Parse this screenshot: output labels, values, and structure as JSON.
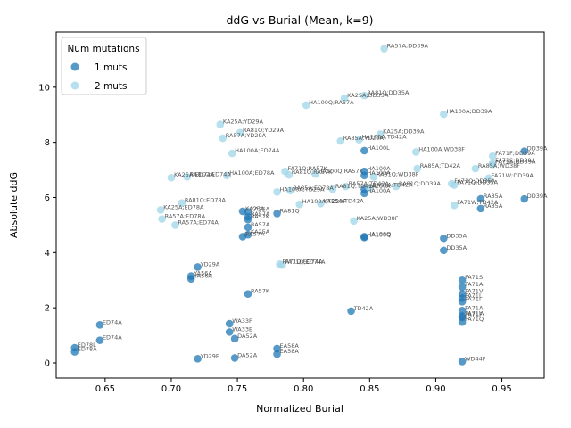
{
  "chart_data": {
    "type": "scatter",
    "title": "ddG vs Burial (Mean, k=9)",
    "xlabel": "Normalized Burial",
    "ylabel": "Absolute ddG",
    "xlim": [
      0.613,
      0.982
    ],
    "ylim": [
      -0.55,
      12.0
    ],
    "xticks": [
      0.65,
      0.7,
      0.75,
      0.8,
      0.85,
      0.9,
      0.95
    ],
    "xtick_labels": [
      "0.65",
      "0.70",
      "0.75",
      "0.80",
      "0.85",
      "0.90",
      "0.95"
    ],
    "yticks": [
      0,
      2,
      4,
      6,
      8,
      10
    ],
    "ytick_labels": [
      "0",
      "2",
      "4",
      "6",
      "8",
      "10"
    ],
    "grid": false,
    "legend": {
      "title": "Num mutations",
      "placement": "top-left",
      "entries": [
        {
          "label": "1 muts",
          "color": "#1f77b4"
        },
        {
          "label": "2 muts",
          "color": "#9fd6e8"
        }
      ]
    },
    "series": [
      {
        "name": "1 muts",
        "color": "#1f77b4",
        "points": [
          {
            "x": 0.627,
            "y": 0.55,
            "label": "ED78L"
          },
          {
            "x": 0.627,
            "y": 0.4,
            "label": "ED78A"
          },
          {
            "x": 0.646,
            "y": 1.38,
            "label": "ED74A"
          },
          {
            "x": 0.646,
            "y": 0.82,
            "label": "ED74A"
          },
          {
            "x": 0.715,
            "y": 3.15,
            "label": "YA56A"
          },
          {
            "x": 0.715,
            "y": 3.05,
            "label": "YA56A"
          },
          {
            "x": 0.72,
            "y": 3.48,
            "label": "YD29A"
          },
          {
            "x": 0.72,
            "y": 0.15,
            "label": "YD29F"
          },
          {
            "x": 0.744,
            "y": 1.42,
            "label": "WA33F"
          },
          {
            "x": 0.744,
            "y": 1.12,
            "label": "WA33E"
          },
          {
            "x": 0.748,
            "y": 0.88,
            "label": "DA52A"
          },
          {
            "x": 0.748,
            "y": 0.18,
            "label": "DA52A"
          },
          {
            "x": 0.754,
            "y": 5.5,
            "label": "KA25A"
          },
          {
            "x": 0.754,
            "y": 4.58,
            "label": "RA57A"
          },
          {
            "x": 0.758,
            "y": 5.48,
            "label": "KA25A"
          },
          {
            "x": 0.758,
            "y": 5.3,
            "label": "RA57A"
          },
          {
            "x": 0.758,
            "y": 5.2,
            "label": "RA57K"
          },
          {
            "x": 0.758,
            "y": 4.92,
            "label": "RA57A"
          },
          {
            "x": 0.758,
            "y": 4.65,
            "label": "KA25A"
          },
          {
            "x": 0.758,
            "y": 2.5,
            "label": "RA57K"
          },
          {
            "x": 0.78,
            "y": 5.42,
            "label": "RA81Q"
          },
          {
            "x": 0.78,
            "y": 0.52,
            "label": "EA58A"
          },
          {
            "x": 0.78,
            "y": 0.32,
            "label": "EA58A"
          },
          {
            "x": 0.836,
            "y": 1.88,
            "label": "TD42A"
          },
          {
            "x": 0.846,
            "y": 7.7,
            "label": "HA100L"
          },
          {
            "x": 0.846,
            "y": 6.95,
            "label": "HA100A"
          },
          {
            "x": 0.846,
            "y": 6.8,
            "label": "HA100A"
          },
          {
            "x": 0.846,
            "y": 6.3,
            "label": "HA100A"
          },
          {
            "x": 0.846,
            "y": 6.15,
            "label": "HA100A"
          },
          {
            "x": 0.846,
            "y": 4.58,
            "label": "HA100Q"
          },
          {
            "x": 0.846,
            "y": 4.55,
            "label": "HA100Q"
          },
          {
            "x": 0.906,
            "y": 4.52,
            "label": "DD35A"
          },
          {
            "x": 0.906,
            "y": 4.08,
            "label": "DD35A"
          },
          {
            "x": 0.92,
            "y": 3.0,
            "label": "FA71S"
          },
          {
            "x": 0.92,
            "y": 2.75,
            "label": "FA71A"
          },
          {
            "x": 0.92,
            "y": 2.5,
            "label": "FA71V"
          },
          {
            "x": 0.92,
            "y": 2.35,
            "label": "FA71L"
          },
          {
            "x": 0.92,
            "y": 2.22,
            "label": "FA71I"
          },
          {
            "x": 0.92,
            "y": 1.9,
            "label": "FA71A"
          },
          {
            "x": 0.92,
            "y": 1.7,
            "label": "FA71W"
          },
          {
            "x": 0.92,
            "y": 1.65,
            "label": "FA71F"
          },
          {
            "x": 0.92,
            "y": 1.48,
            "label": "FA71Q"
          },
          {
            "x": 0.92,
            "y": 0.05,
            "label": "WD44F"
          },
          {
            "x": 0.934,
            "y": 5.95,
            "label": "RA85A"
          },
          {
            "x": 0.934,
            "y": 5.6,
            "label": "RA85A"
          },
          {
            "x": 0.967,
            "y": 7.68,
            "label": "DD39A"
          },
          {
            "x": 0.967,
            "y": 5.95,
            "label": "DD39A"
          }
        ]
      },
      {
        "name": "2 muts",
        "color": "#9fd6e8",
        "points": [
          {
            "x": 0.692,
            "y": 5.55,
            "label": "KA25A;ED78A"
          },
          {
            "x": 0.693,
            "y": 5.22,
            "label": "RA57A;ED78A"
          },
          {
            "x": 0.7,
            "y": 6.72,
            "label": "KA25A;ED74A"
          },
          {
            "x": 0.703,
            "y": 5.0,
            "label": "RA57A;ED74A"
          },
          {
            "x": 0.708,
            "y": 5.8,
            "label": "RA81Q;ED78A"
          },
          {
            "x": 0.712,
            "y": 6.75,
            "label": "RA81Q;ED74A"
          },
          {
            "x": 0.737,
            "y": 8.65,
            "label": "KA25A;YD29A"
          },
          {
            "x": 0.739,
            "y": 8.15,
            "label": "RA57A;YD29A"
          },
          {
            "x": 0.742,
            "y": 6.8,
            "label": "HA100A;ED78A"
          },
          {
            "x": 0.746,
            "y": 7.6,
            "label": "HA100A;ED74A"
          },
          {
            "x": 0.752,
            "y": 8.35,
            "label": "RA81Q;YD29A"
          },
          {
            "x": 0.78,
            "y": 6.2,
            "label": "HA100A;YD29A"
          },
          {
            "x": 0.782,
            "y": 3.58,
            "label": "FA71Q;ED74A"
          },
          {
            "x": 0.784,
            "y": 3.55,
            "label": "FA71Q;ED74A"
          },
          {
            "x": 0.786,
            "y": 6.95,
            "label": "FA71Q;RA57K"
          },
          {
            "x": 0.789,
            "y": 6.82,
            "label": "RA81Q;RA57K"
          },
          {
            "x": 0.79,
            "y": 6.25,
            "label": "RA85A;ED78A"
          },
          {
            "x": 0.797,
            "y": 5.75,
            "label": "HA100A;TD29F"
          },
          {
            "x": 0.802,
            "y": 9.35,
            "label": "HA100Q;RA57A"
          },
          {
            "x": 0.809,
            "y": 6.85,
            "label": "HA100Q;RA57K"
          },
          {
            "x": 0.813,
            "y": 5.78,
            "label": "KA25A;TD42A"
          },
          {
            "x": 0.822,
            "y": 6.3,
            "label": "RA81Q;TD42A"
          },
          {
            "x": 0.828,
            "y": 8.05,
            "label": "RA85A;YD29A"
          },
          {
            "x": 0.831,
            "y": 9.6,
            "label": "KA25A;DD35A"
          },
          {
            "x": 0.832,
            "y": 6.4,
            "label": "RA57A;TD42A"
          },
          {
            "x": 0.838,
            "y": 5.15,
            "label": "KA25A;WD38F"
          },
          {
            "x": 0.842,
            "y": 8.1,
            "label": "HA100A;TD42A"
          },
          {
            "x": 0.846,
            "y": 9.7,
            "label": "RA81Q;DD35A"
          },
          {
            "x": 0.85,
            "y": 6.35,
            "label": "RA85A;TD42A"
          },
          {
            "x": 0.853,
            "y": 6.75,
            "label": "RA81Q;WD38F"
          },
          {
            "x": 0.858,
            "y": 8.3,
            "label": "KA25A;DD39A"
          },
          {
            "x": 0.861,
            "y": 11.4,
            "label": "RA57A;DD39A"
          },
          {
            "x": 0.87,
            "y": 6.4,
            "label": "RA81Q;DD39A"
          },
          {
            "x": 0.885,
            "y": 7.65,
            "label": "HA100A;WD38F"
          },
          {
            "x": 0.886,
            "y": 7.05,
            "label": "RA85A;TD42A"
          },
          {
            "x": 0.906,
            "y": 9.02,
            "label": "HA100A;DD39A"
          },
          {
            "x": 0.912,
            "y": 6.5,
            "label": "FA71Q;DD35A"
          },
          {
            "x": 0.914,
            "y": 6.45,
            "label": "FA71Q;DD35A"
          },
          {
            "x": 0.914,
            "y": 5.72,
            "label": "FA71W;TD42A"
          },
          {
            "x": 0.93,
            "y": 7.05,
            "label": "RA85A;WD38F"
          },
          {
            "x": 0.94,
            "y": 6.7,
            "label": "FA71W;DD39A"
          },
          {
            "x": 0.943,
            "y": 7.5,
            "label": "FA71F;DD39A"
          },
          {
            "x": 0.943,
            "y": 7.25,
            "label": "FA71S;DD39A"
          },
          {
            "x": 0.943,
            "y": 7.2,
            "label": "FA71A;DD39A"
          }
        ]
      }
    ]
  }
}
